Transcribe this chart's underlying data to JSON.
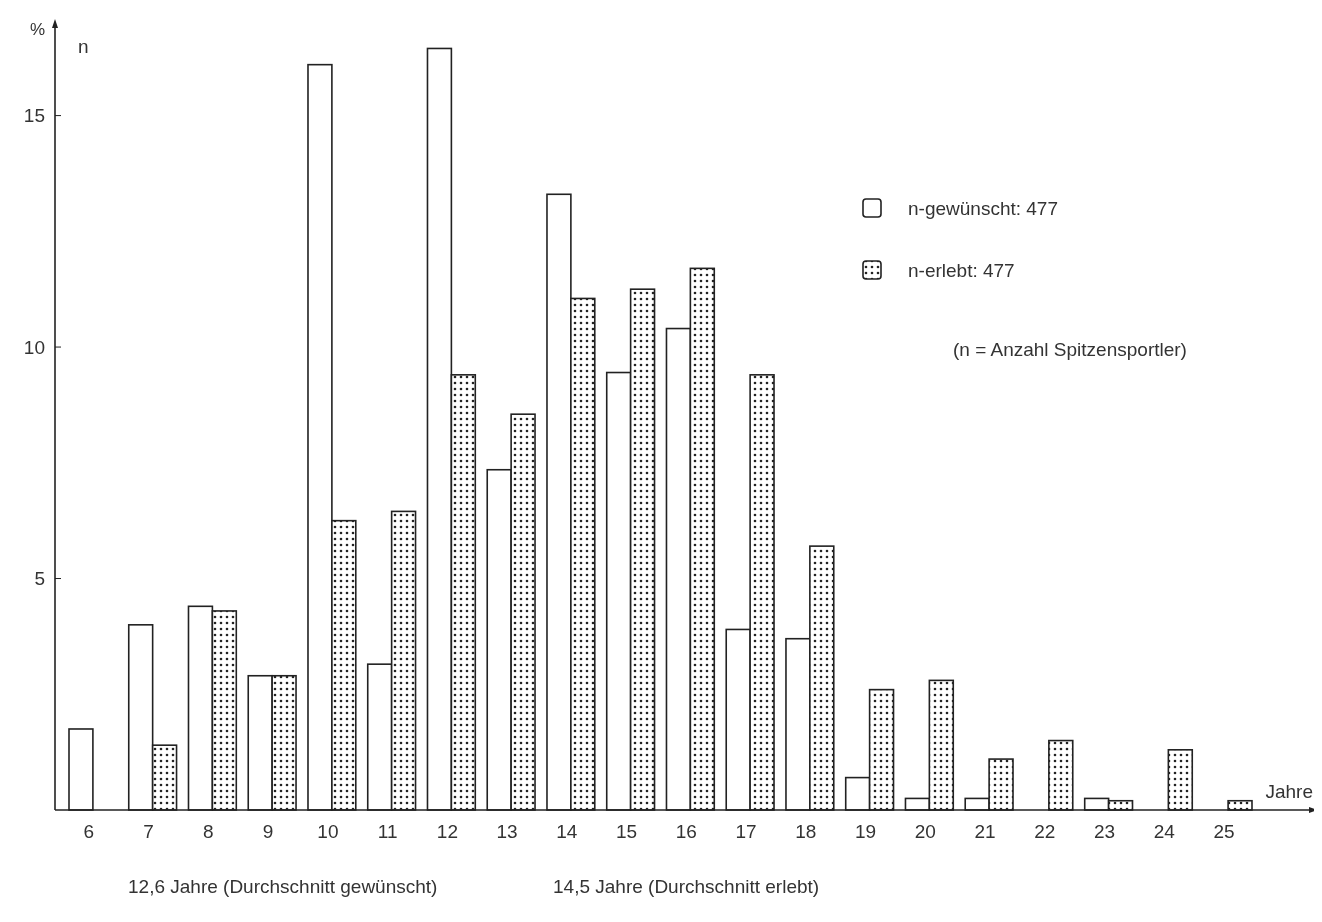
{
  "chart_data": {
    "type": "bar",
    "xlabel": "Jahre",
    "ylabel": "%",
    "categories": [
      "6",
      "7",
      "8",
      "9",
      "10",
      "11",
      "12",
      "13",
      "14",
      "15",
      "16",
      "17",
      "18",
      "19",
      "20",
      "21",
      "22",
      "23",
      "24",
      "25"
    ],
    "series": [
      {
        "name": "n-gewünscht: 477",
        "color": "#ffffff",
        "values": [
          1.75,
          4.0,
          4.4,
          2.9,
          16.1,
          3.15,
          16.45,
          7.35,
          13.3,
          9.45,
          10.4,
          3.9,
          3.7,
          0.7,
          0.25,
          0.25,
          null,
          0.25,
          null,
          null
        ]
      },
      {
        "name": "n-erlebt: 477",
        "color": "#222222",
        "values": [
          null,
          1.4,
          4.3,
          2.9,
          6.25,
          6.45,
          9.4,
          8.55,
          11.05,
          11.25,
          11.7,
          9.4,
          5.7,
          2.6,
          2.8,
          1.1,
          1.5,
          0.2,
          1.3,
          0.2
        ]
      }
    ],
    "ylim": [
      0,
      17
    ],
    "yticks": [
      5,
      10,
      15
    ],
    "legend": "top right",
    "grid": false,
    "annotations": [
      "n",
      "(n = Anzahl Spitzensportler)",
      "12,6 Jahre (Durchschnitt gewünscht)",
      "14,5 Jahre (Durchschnitt erlebt)"
    ]
  }
}
